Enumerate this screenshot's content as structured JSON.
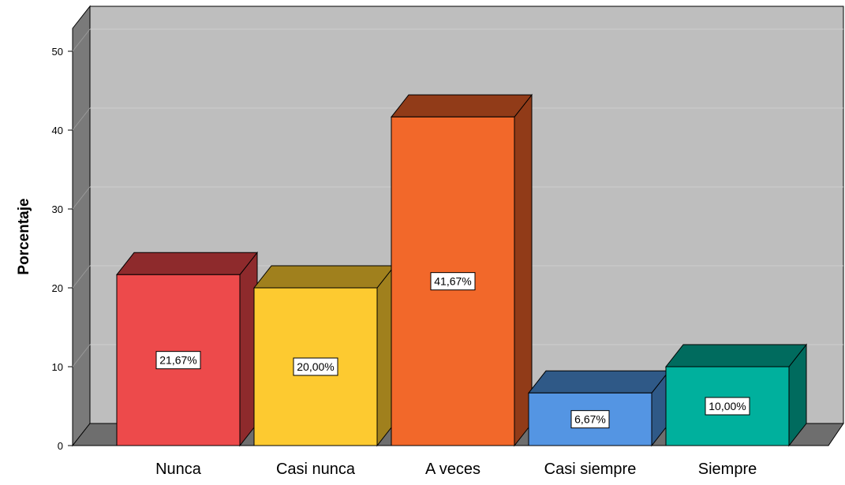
{
  "chart_data": {
    "type": "bar",
    "style": "3d",
    "categories": [
      "Nunca",
      "Casi nunca",
      "A veces",
      "Casi siempre",
      "Siempre"
    ],
    "values": [
      21.67,
      20.0,
      41.67,
      6.67,
      10.0
    ],
    "data_labels": [
      "21,67%",
      "20,00%",
      "41,67%",
      "6,67%",
      "10,00%"
    ],
    "title": "",
    "xlabel": "",
    "ylabel": "Porcentaje",
    "ylim": [
      0,
      50
    ],
    "yticks": [
      "0",
      "10",
      "20",
      "30",
      "40",
      "50"
    ],
    "grid": true,
    "legend": "none",
    "colors": {
      "bars": [
        "#ED4A4B",
        "#FDCA30",
        "#F2682A",
        "#5495E3",
        "#00B09D"
      ],
      "bar_sides": [
        "#8E2A2C",
        "#A0801D",
        "#913B18",
        "#2F5987",
        "#006B5E"
      ],
      "wall": "#BEBEBE",
      "wall_side": "#7A7A7A",
      "floor": "#6E6E6E",
      "grid": "#CFCFCF"
    }
  }
}
